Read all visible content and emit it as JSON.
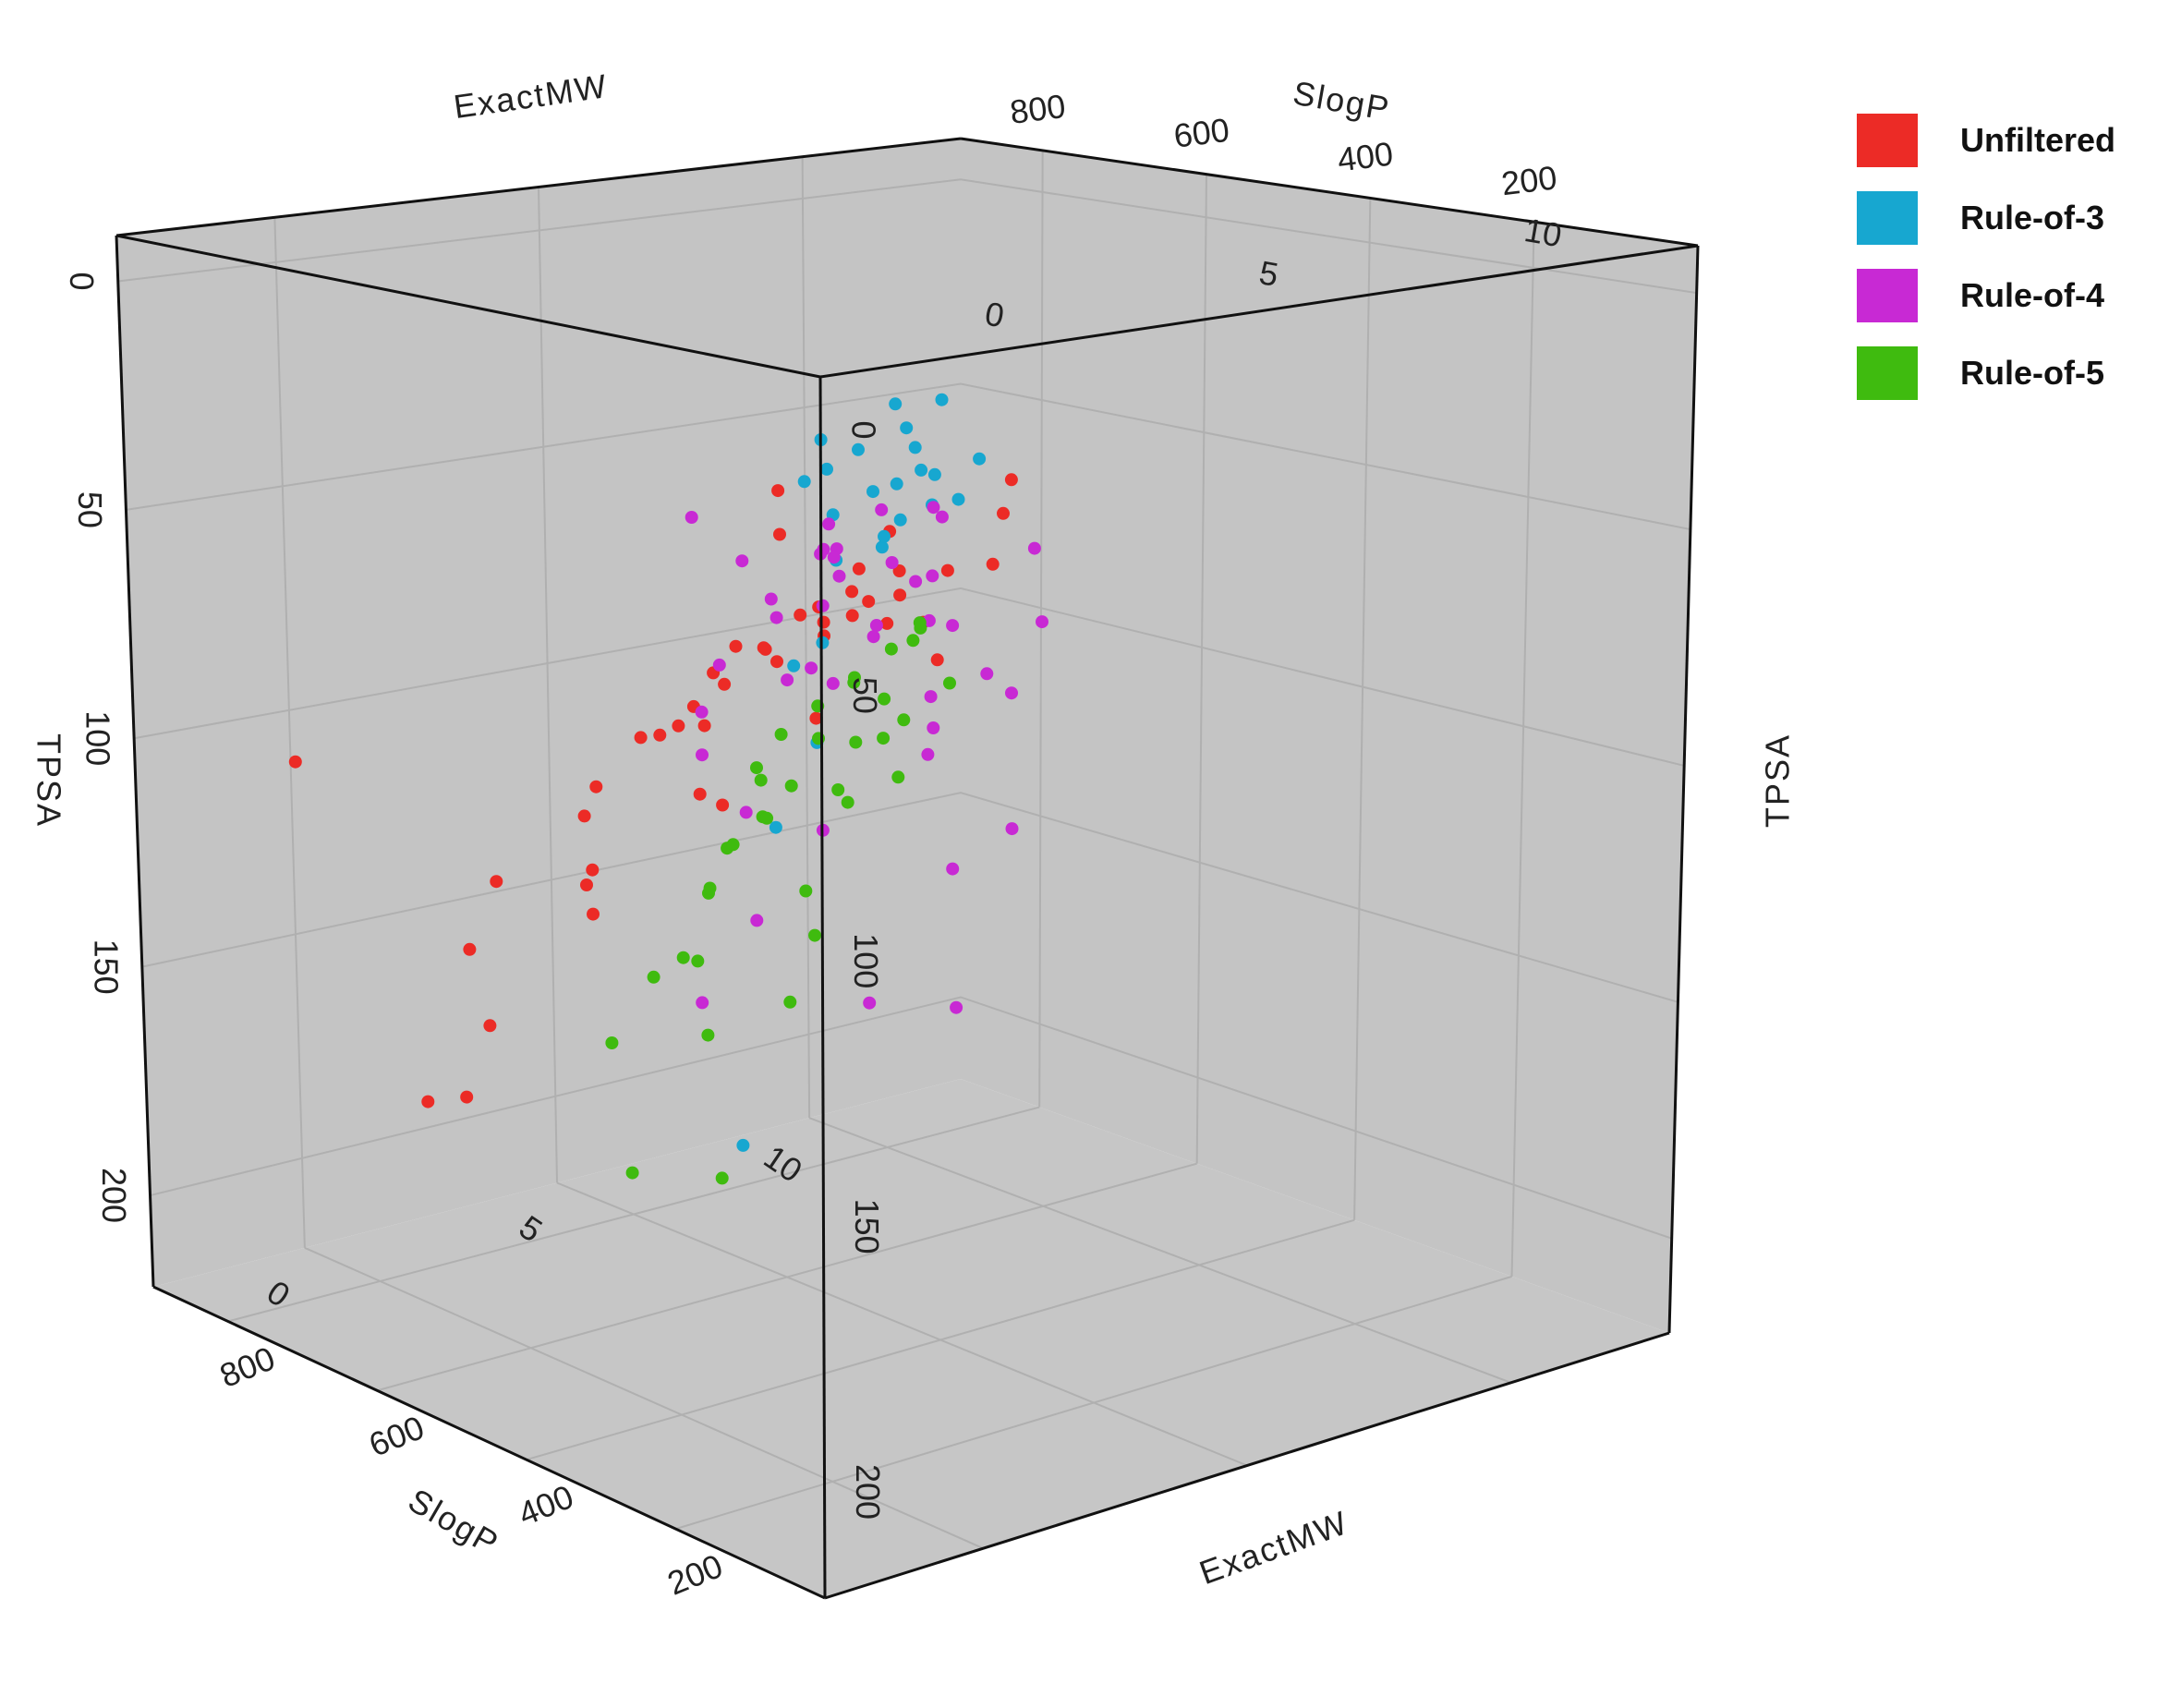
{
  "chart_data": {
    "type": "scatter",
    "projection": "3d",
    "axes": {
      "x": {
        "label": "ExactMW",
        "ticks": [
          200,
          400,
          600,
          800
        ],
        "range": [
          0,
          900
        ]
      },
      "y": {
        "label": "SlogP",
        "ticks": [
          0,
          5,
          10
        ],
        "range": [
          -3,
          13
        ]
      },
      "z": {
        "label": "TPSA",
        "ticks": [
          0,
          50,
          100,
          150,
          200
        ],
        "range": [
          -10,
          220
        ],
        "reversed": true
      }
    },
    "grid": true,
    "legend_position": "top-right",
    "series": [
      {
        "name": "Unfiltered",
        "color": "#ec2b26",
        "points": [
          [
            470,
            4.4,
            68
          ],
          [
            520,
            4.6,
            72
          ],
          [
            430,
            3.8,
            60
          ],
          [
            560,
            5.2,
            78
          ],
          [
            500,
            3.2,
            74
          ],
          [
            610,
            4.8,
            82
          ],
          [
            450,
            5.0,
            64
          ],
          [
            580,
            3.6,
            86
          ],
          [
            490,
            4.0,
            90
          ],
          [
            530,
            5.6,
            70
          ],
          [
            660,
            4.2,
            96
          ],
          [
            410,
            4.4,
            56
          ],
          [
            540,
            2.8,
            80
          ],
          [
            700,
            5.0,
            104
          ],
          [
            470,
            6.2,
            62
          ],
          [
            620,
            6.0,
            76
          ],
          [
            380,
            3.2,
            52
          ],
          [
            760,
            3.8,
            118
          ],
          [
            680,
            2.4,
            132
          ],
          [
            820,
            4.6,
            142
          ],
          [
            600,
            1.2,
            110
          ],
          [
            850,
            3.0,
            175
          ],
          [
            900,
            5.8,
            160
          ],
          [
            740,
            7.0,
            96
          ],
          [
            640,
            7.6,
            84
          ],
          [
            520,
            7.8,
            66
          ],
          [
            560,
            8.6,
            58
          ],
          [
            700,
            9.2,
            90
          ],
          [
            780,
            1.6,
            150
          ],
          [
            880,
            2.2,
            192
          ],
          [
            300,
            2.6,
            40
          ],
          [
            360,
            1.8,
            58
          ],
          [
            430,
            6.8,
            42
          ],
          [
            890,
            8.2,
            140
          ],
          [
            720,
            0.6,
            176
          ],
          [
            600,
            -0.5,
            120
          ],
          [
            800,
            6.4,
            128
          ],
          [
            650,
            3.4,
            100
          ],
          [
            580,
            2.0,
            94
          ],
          [
            510,
            6.6,
            84
          ],
          [
            470,
            2.2,
            70
          ],
          [
            880,
            -0.2,
            110
          ],
          [
            550,
            4.2,
            44
          ],
          [
            440,
            2.6,
            46
          ],
          [
            760,
            5.4,
            108
          ]
        ]
      },
      {
        "name": "Rule-of-3",
        "color": "#17a7d0",
        "points": [
          [
            240,
            2.2,
            20
          ],
          [
            210,
            1.6,
            14
          ],
          [
            260,
            2.6,
            26
          ],
          [
            230,
            1.0,
            18
          ],
          [
            280,
            2.0,
            30
          ],
          [
            200,
            2.8,
            22
          ],
          [
            250,
            0.6,
            16
          ],
          [
            290,
            1.4,
            34
          ],
          [
            220,
            2.4,
            10
          ],
          [
            270,
            3.0,
            28
          ],
          [
            195,
            1.2,
            24
          ],
          [
            300,
            2.8,
            38
          ],
          [
            215,
            0.2,
            20
          ],
          [
            255,
            1.8,
            40
          ],
          [
            240,
            3.0,
            32
          ],
          [
            285,
            0.8,
            26
          ],
          [
            205,
            2.0,
            30
          ],
          [
            265,
            2.2,
            12
          ],
          [
            225,
            1.4,
            36
          ],
          [
            300,
            1.6,
            44
          ],
          [
            180,
            -0.4,
            52
          ],
          [
            200,
            -1.0,
            88
          ],
          [
            190,
            -1.8,
            148
          ],
          [
            160,
            -0.8,
            70
          ],
          [
            245,
            0.0,
            60
          ]
        ]
      },
      {
        "name": "Rule-of-4",
        "color": "#c829d4",
        "points": [
          [
            650,
            6.8,
            66
          ],
          [
            680,
            7.2,
            70
          ],
          [
            620,
            6.2,
            58
          ],
          [
            700,
            7.6,
            76
          ],
          [
            600,
            5.8,
            62
          ],
          [
            720,
            6.6,
            80
          ],
          [
            660,
            8.0,
            72
          ],
          [
            640,
            7.4,
            84
          ],
          [
            690,
            5.6,
            68
          ],
          [
            610,
            8.2,
            60
          ],
          [
            740,
            7.0,
            86
          ],
          [
            630,
            6.0,
            90
          ],
          [
            670,
            8.6,
            78
          ],
          [
            580,
            6.6,
            54
          ],
          [
            710,
            8.4,
            92
          ],
          [
            750,
            8.0,
            74
          ],
          [
            600,
            7.8,
            82
          ],
          [
            760,
            6.2,
            96
          ],
          [
            650,
            9.0,
            88
          ],
          [
            700,
            9.4,
            64
          ],
          [
            780,
            7.8,
            104
          ],
          [
            620,
            9.2,
            98
          ],
          [
            800,
            8.8,
            90
          ],
          [
            730,
            9.8,
            110
          ],
          [
            690,
            4.8,
            100
          ],
          [
            810,
            6.6,
            120
          ],
          [
            760,
            10.2,
            126
          ],
          [
            840,
            9.6,
            112
          ],
          [
            860,
            8.2,
            140
          ],
          [
            780,
            10.6,
            86
          ],
          [
            880,
            10.0,
            150
          ],
          [
            900,
            9.0,
            170
          ],
          [
            720,
            11.2,
            112
          ],
          [
            820,
            11.6,
            160
          ],
          [
            870,
            12.0,
            130
          ],
          [
            900,
            11.2,
            196
          ],
          [
            680,
            10.6,
            140
          ],
          [
            840,
            7.0,
            180
          ],
          [
            760,
            12.4,
            100
          ],
          [
            880,
            12.6,
            200
          ],
          [
            600,
            9.8,
            70
          ],
          [
            740,
            5.4,
            60
          ]
        ]
      },
      {
        "name": "Rule-of-5",
        "color": "#3fbb0f",
        "points": [
          [
            400,
            3.4,
            76
          ],
          [
            420,
            3.0,
            82
          ],
          [
            380,
            3.8,
            70
          ],
          [
            440,
            2.6,
            88
          ],
          [
            360,
            2.8,
            74
          ],
          [
            460,
            3.6,
            92
          ],
          [
            400,
            2.2,
            96
          ],
          [
            370,
            4.2,
            66
          ],
          [
            430,
            4.4,
            84
          ],
          [
            350,
            3.2,
            86
          ],
          [
            480,
            2.8,
            100
          ],
          [
            410,
            1.8,
            102
          ],
          [
            330,
            3.6,
            62
          ],
          [
            450,
            4.0,
            106
          ],
          [
            390,
            1.4,
            90
          ],
          [
            470,
            2.0,
            112
          ],
          [
            340,
            2.2,
            94
          ],
          [
            500,
            3.2,
            110
          ],
          [
            420,
            4.8,
            72
          ],
          [
            360,
            4.6,
            78
          ],
          [
            310,
            3.0,
            80
          ],
          [
            480,
            4.6,
            96
          ],
          [
            440,
            1.2,
            118
          ],
          [
            380,
            0.8,
            104
          ],
          [
            520,
            2.4,
            124
          ],
          [
            290,
            2.6,
            90
          ],
          [
            460,
            1.0,
            132
          ],
          [
            400,
            0.4,
            128
          ],
          [
            330,
            1.6,
            122
          ],
          [
            500,
            0.2,
            150
          ],
          [
            360,
            0.0,
            140
          ],
          [
            420,
            -0.6,
            170
          ],
          [
            300,
            1.0,
            110
          ],
          [
            280,
            0.4,
            130
          ],
          [
            260,
            -1.2,
            160
          ],
          [
            540,
            1.6,
            142
          ]
        ]
      }
    ]
  }
}
